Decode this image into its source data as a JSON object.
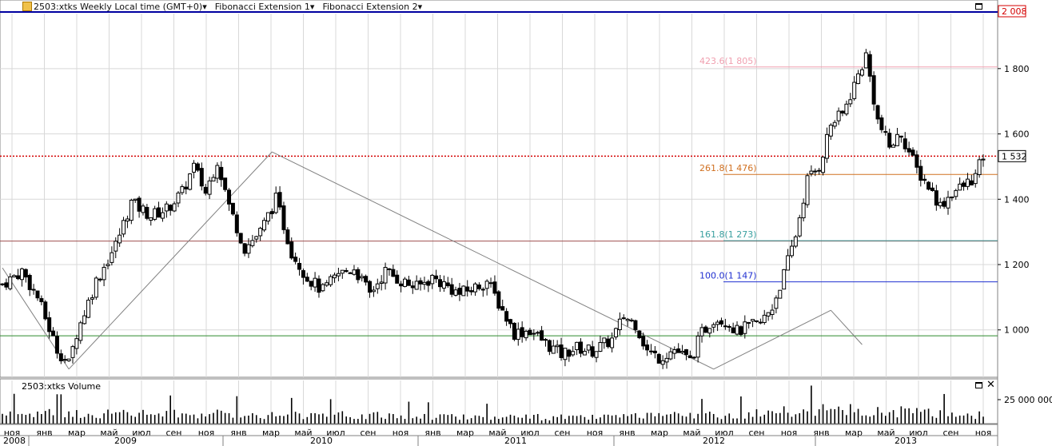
{
  "toolbar": {
    "title": "2503:xtks Weekly Local time (GMT+0)",
    "ind1": "Fibonacci Extension 1",
    "ind2": "Fibonacci Extension 2",
    "caret": "▾"
  },
  "volume_panel": {
    "label": "2503:xtks Volume",
    "tick": "25 000 000",
    "close_symbol": "✕"
  },
  "colors": {
    "candle": "#000000",
    "grid": "#d8d8d8",
    "price_line": "#d40000",
    "top_line": "#0000a0",
    "fib_423": "#f0a0b0",
    "fib_261": "#d07020",
    "fib_161": "#3aa0a0",
    "fib_100": "#2030d0",
    "green_line": "#2c8a2c",
    "brown_line": "#a05050"
  },
  "chart_data": {
    "type": "candlestick",
    "y_axis": {
      "ticks": [
        1000,
        1200,
        1400,
        1600,
        1800
      ],
      "tick_labels": [
        "1 000",
        "1 200",
        "1 400",
        "1 600",
        "1 800"
      ],
      "ylim": [
        855,
        2010
      ]
    },
    "top_label": "2 008",
    "last_price_label": "1 532",
    "last_price": 1532,
    "horizontal_lines": [
      {
        "value": 2008,
        "kind": "top"
      },
      {
        "value": 1532,
        "kind": "price"
      },
      {
        "value": 1272,
        "kind": "brown"
      },
      {
        "value": 982,
        "kind": "green"
      }
    ],
    "fib_levels": [
      {
        "label": "423.6(1 805)",
        "value": 1805,
        "color_key": "fib_423"
      },
      {
        "label": "261.8(1 476)",
        "value": 1476,
        "color_key": "fib_261"
      },
      {
        "label": "161.8(1 273)",
        "value": 1273,
        "color_key": "fib_161"
      },
      {
        "label": "100.0(1 147)",
        "value": 1147,
        "color_key": "fib_100"
      }
    ],
    "months": [
      "ноя",
      "янв",
      "мар",
      "май",
      "июл",
      "сен",
      "ноя",
      "янв",
      "мар",
      "май",
      "июл",
      "сен",
      "ноя",
      "янв",
      "мар",
      "май",
      "июл",
      "сен",
      "ноя",
      "янв",
      "мар",
      "май",
      "июл",
      "сен",
      "ноя",
      "янв",
      "мар",
      "май",
      "июл",
      "сен",
      "ноя"
    ],
    "years": [
      "2008",
      "2009",
      "2010",
      "2011",
      "2012",
      "2013"
    ],
    "anchors": [
      [
        0,
        1140
      ],
      [
        5,
        1180
      ],
      [
        9,
        1100
      ],
      [
        14,
        940
      ],
      [
        17,
        895
      ],
      [
        19,
        990
      ],
      [
        24,
        1150
      ],
      [
        29,
        1260
      ],
      [
        33,
        1390
      ],
      [
        38,
        1350
      ],
      [
        42,
        1370
      ],
      [
        46,
        1420
      ],
      [
        49,
        1500
      ],
      [
        52,
        1420
      ],
      [
        55,
        1520
      ],
      [
        58,
        1380
      ],
      [
        62,
        1250
      ],
      [
        66,
        1300
      ],
      [
        70,
        1400
      ],
      [
        74,
        1240
      ],
      [
        78,
        1160
      ],
      [
        82,
        1120
      ],
      [
        86,
        1170
      ],
      [
        90,
        1190
      ],
      [
        94,
        1110
      ],
      [
        98,
        1180
      ],
      [
        102,
        1150
      ],
      [
        106,
        1130
      ],
      [
        110,
        1160
      ],
      [
        113,
        1140
      ],
      [
        117,
        1110
      ],
      [
        121,
        1130
      ],
      [
        124,
        1150
      ],
      [
        128,
        1060
      ],
      [
        131,
        990
      ],
      [
        135,
        1000
      ],
      [
        139,
        960
      ],
      [
        143,
        925
      ],
      [
        147,
        945
      ],
      [
        151,
        935
      ],
      [
        156,
        970
      ],
      [
        159,
        1040
      ],
      [
        162,
        1020
      ],
      [
        165,
        935
      ],
      [
        168,
        915
      ],
      [
        172,
        940
      ],
      [
        176,
        905
      ],
      [
        179,
        990
      ],
      [
        182,
        1035
      ],
      [
        185,
        1030
      ],
      [
        188,
        995
      ],
      [
        191,
        1010
      ],
      [
        194,
        1020
      ],
      [
        197,
        1070
      ],
      [
        200,
        1170
      ],
      [
        203,
        1290
      ],
      [
        206,
        1460
      ],
      [
        209,
        1500
      ],
      [
        212,
        1630
      ],
      [
        215,
        1660
      ],
      [
        218,
        1750
      ],
      [
        221,
        1840
      ],
      [
        224,
        1640
      ],
      [
        227,
        1560
      ],
      [
        230,
        1600
      ],
      [
        234,
        1490
      ],
      [
        237,
        1440
      ],
      [
        240,
        1380
      ],
      [
        243,
        1420
      ],
      [
        246,
        1440
      ],
      [
        249,
        1470
      ],
      [
        251,
        1532
      ]
    ],
    "volume": {
      "ylim": [
        0,
        45000000
      ],
      "levels": [
        [
          0,
          12000000
        ],
        [
          60,
          11000000
        ],
        [
          110,
          8500000
        ],
        [
          150,
          7000000
        ],
        [
          190,
          11000000
        ],
        [
          210,
          16000000
        ],
        [
          235,
          13000000
        ],
        [
          251,
          10000000
        ]
      ]
    }
  }
}
